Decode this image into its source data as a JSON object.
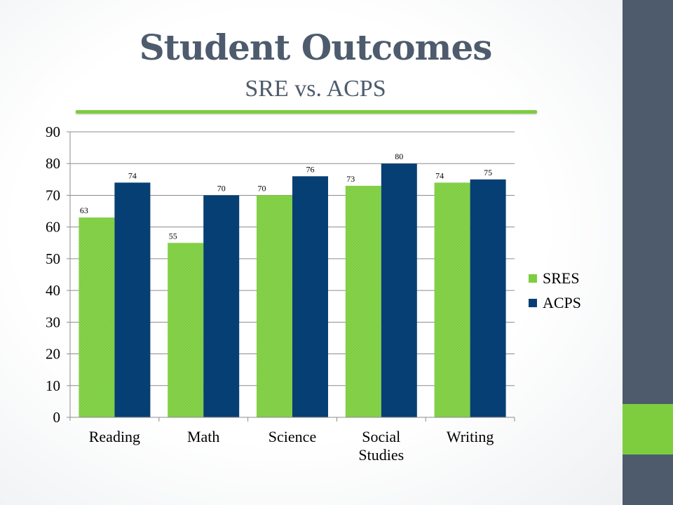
{
  "slide": {
    "title": "Student Outcomes",
    "subtitle": "SRE vs. ACPS",
    "colors": {
      "dark": "#4d5b6d",
      "accent": "#7dcd3f"
    }
  },
  "chart_data": {
    "type": "bar",
    "categories": [
      "Reading",
      "Math",
      "Science",
      "Social Studies",
      "Writing"
    ],
    "category_lines": [
      [
        "Reading"
      ],
      [
        "Math"
      ],
      [
        "Science"
      ],
      [
        "Social",
        "Studies"
      ],
      [
        "Writing"
      ]
    ],
    "series": [
      {
        "name": "SRES",
        "values": [
          63,
          55,
          70,
          73,
          74
        ],
        "color": "#7dcd3f"
      },
      {
        "name": "ACPS",
        "values": [
          74,
          70,
          76,
          80,
          75
        ],
        "color": "#063f73"
      }
    ],
    "ylim": [
      0,
      90
    ],
    "yticks": [
      0,
      10,
      20,
      30,
      40,
      50,
      60,
      70,
      80,
      90
    ],
    "grid": true,
    "legend": "right"
  }
}
